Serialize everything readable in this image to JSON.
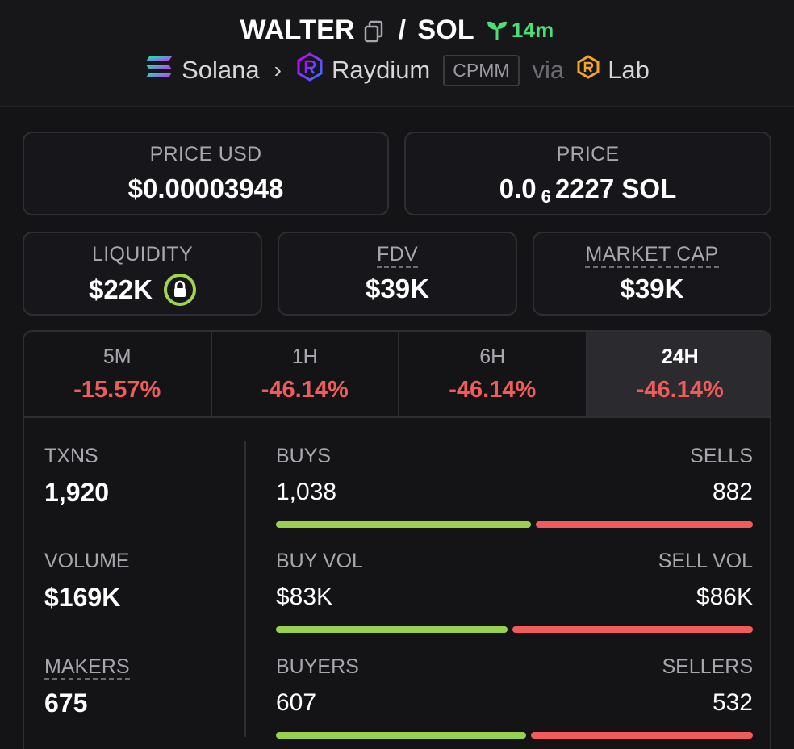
{
  "header": {
    "base_token": "WALTER",
    "separator": "/",
    "quote_token": "SOL",
    "age": "14m",
    "chain": "Solana",
    "dex": "Raydium",
    "pool_type": "CPMM",
    "via_label": "via",
    "launchpad": "Lab"
  },
  "price_usd": {
    "label": "PRICE USD",
    "value": "$0.00003948"
  },
  "price_native": {
    "label": "PRICE",
    "prefix": "0.0",
    "zeros_subscript": "6",
    "suffix": "2227 SOL"
  },
  "liquidity": {
    "label": "LIQUIDITY",
    "value": "$22K"
  },
  "fdv": {
    "label": "FDV",
    "value": "$39K"
  },
  "market_cap": {
    "label": "MARKET CAP",
    "value": "$39K"
  },
  "tabs": [
    {
      "label": "5M",
      "change": "-15.57%"
    },
    {
      "label": "1H",
      "change": "-46.14%"
    },
    {
      "label": "6H",
      "change": "-46.14%"
    },
    {
      "label": "24H",
      "change": "-46.14%"
    }
  ],
  "active_tab": "24H",
  "txns": {
    "label": "TXNS",
    "value": "1,920"
  },
  "volume": {
    "label": "VOLUME",
    "value": "$169K"
  },
  "makers": {
    "label": "MAKERS",
    "value": "675"
  },
  "buys_sells": {
    "left_label": "BUYS",
    "left_value": "1,038",
    "right_label": "SELLS",
    "right_value": "882",
    "buy_fraction": 0.54
  },
  "buy_sell_vol": {
    "left_label": "BUY VOL",
    "left_value": "$83K",
    "right_label": "SELL VOL",
    "right_value": "$86K",
    "buy_fraction": 0.49
  },
  "buyers_sellers": {
    "left_label": "BUYERS",
    "left_value": "607",
    "right_label": "SELLERS",
    "right_value": "532",
    "buy_fraction": 0.53
  },
  "colors": {
    "positive": "#9ad04f",
    "negative": "#f05b5b",
    "age": "#4ddc7a"
  }
}
